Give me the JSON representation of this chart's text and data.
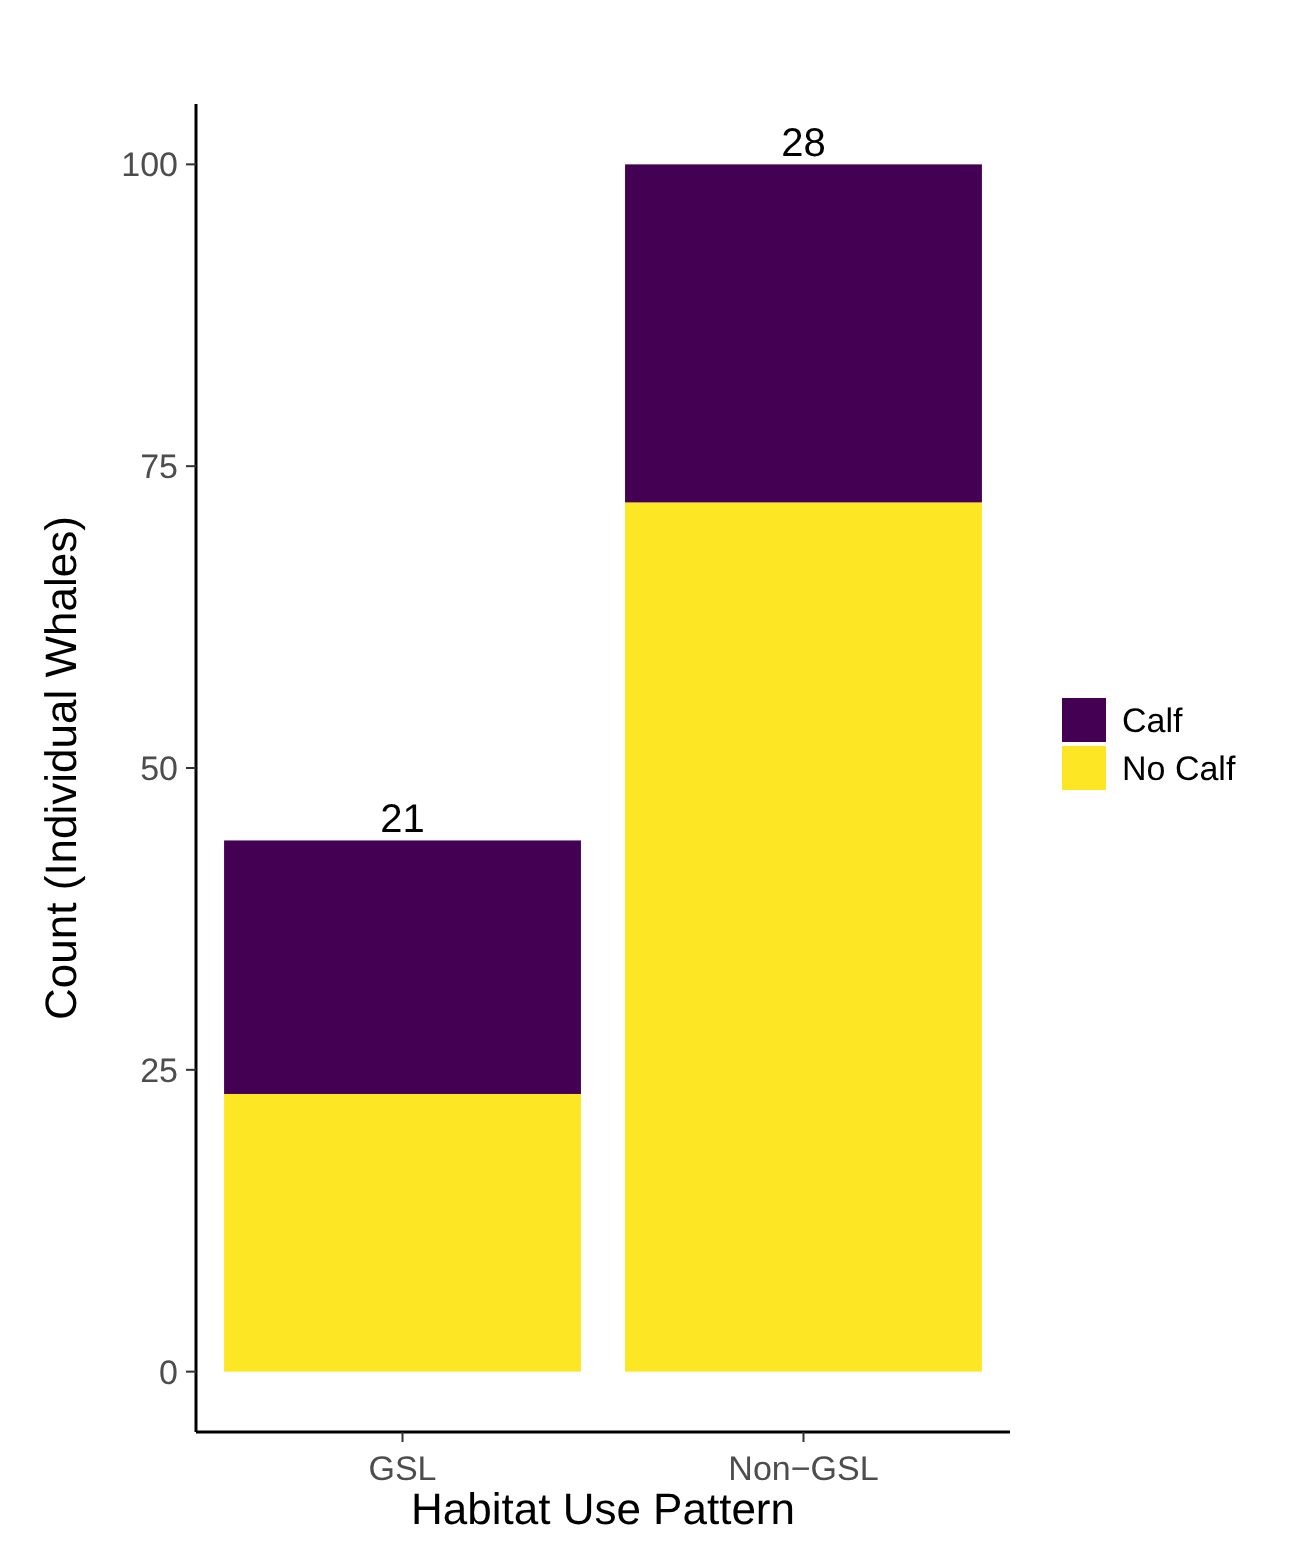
{
  "chart_data": {
    "type": "bar",
    "xlabel": "Habitat Use Pattern",
    "ylabel": "Count (Individual Whales)",
    "categories": [
      "GSL",
      "Non−GSL"
    ],
    "stacked": true,
    "series": [
      {
        "name": "No Calf",
        "color": "#fde725",
        "values": [
          23,
          72
        ]
      },
      {
        "name": "Calf",
        "color": "#440154",
        "values": [
          21,
          28
        ],
        "value_labels": [
          "21",
          "28"
        ]
      }
    ],
    "ylim": [
      -5,
      105
    ],
    "yticks": [
      0,
      25,
      50,
      75,
      100
    ],
    "grid": false,
    "legend": "right"
  }
}
